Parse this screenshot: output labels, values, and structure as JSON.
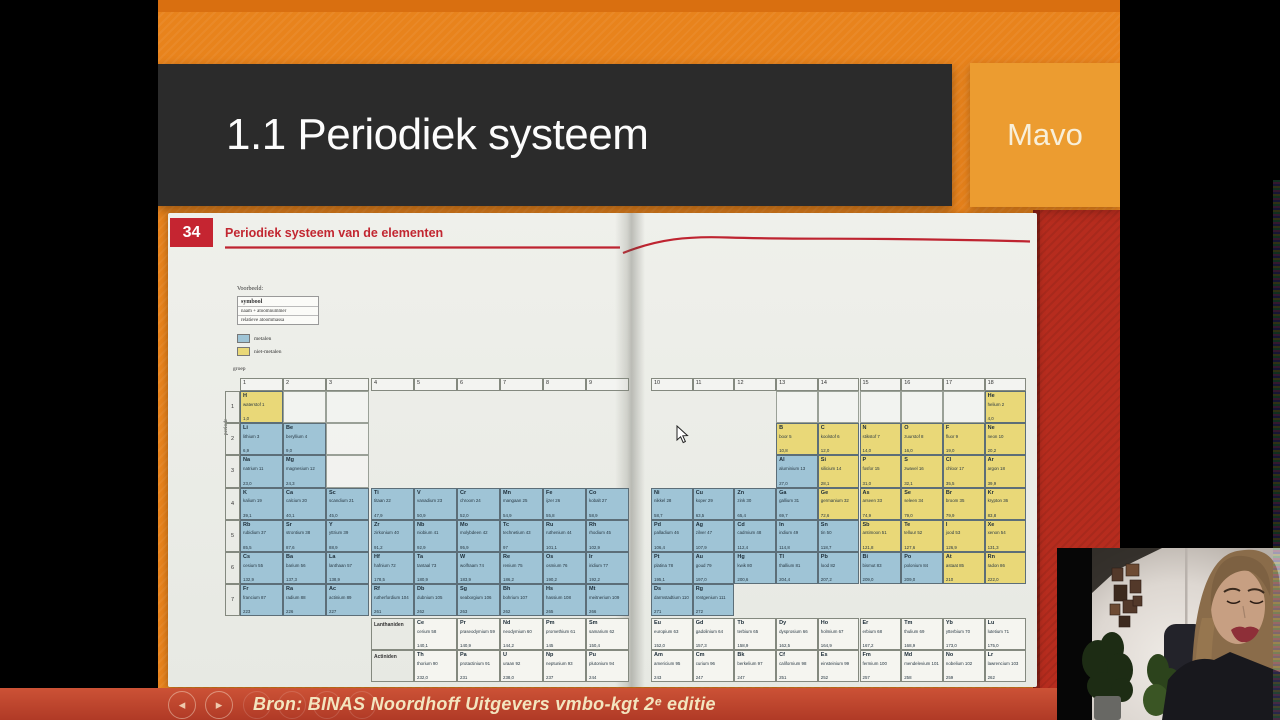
{
  "slide": {
    "title": "1.1 Periodiek systeem",
    "level": "Mavo"
  },
  "presenter": {
    "prev_icon": "◂",
    "next_icon": "▸",
    "source": "Bron: BINAS Noordhoff Uitgevers vmbo-kgt 2ᵉ editie"
  },
  "book": {
    "page_number": "34",
    "title": "Periodiek systeem van de elementen",
    "example_label": "Voorbeeld:",
    "example_rows": [
      "symbool",
      "naam + atoomnummer",
      "relatieve atoommassa"
    ],
    "legend": [
      {
        "label": "metalen",
        "color": "#9FC4D6"
      },
      {
        "label": "niet-metalen",
        "color": "#E9D878"
      }
    ],
    "group_axis_label": "groep",
    "period_axis_label": "periode"
  },
  "table": {
    "group_numbers": [
      "1",
      "2",
      "3",
      "4",
      "5",
      "6",
      "7",
      "8",
      "9",
      "10",
      "11",
      "12",
      "13",
      "14",
      "15",
      "16",
      "17",
      "18"
    ],
    "period_numbers": [
      "1",
      "2",
      "3",
      "4",
      "5",
      "6",
      "7"
    ],
    "series_labels": [
      {
        "label": "Lanthaniden",
        "row": 8
      },
      {
        "label": "Actiniden",
        "row": 9
      }
    ],
    "empty_cells": [
      {
        "p": 1,
        "g": 2
      },
      {
        "p": 1,
        "g": 3
      },
      {
        "p": 2,
        "g": 3
      },
      {
        "p": 3,
        "g": 3
      },
      {
        "p": 1,
        "g": 13
      },
      {
        "p": 1,
        "g": 14
      },
      {
        "p": 1,
        "g": 15
      },
      {
        "p": 1,
        "g": 16
      },
      {
        "p": 1,
        "g": 17
      }
    ],
    "elements": [
      {
        "p": 1,
        "g": 1,
        "s": "H",
        "n": "waterstof",
        "a": 1,
        "m": "1,0",
        "t": "n"
      },
      {
        "p": 1,
        "g": 18,
        "s": "He",
        "n": "helium",
        "a": 2,
        "m": "4,0",
        "t": "n"
      },
      {
        "p": 2,
        "g": 1,
        "s": "Li",
        "n": "lithium",
        "a": 3,
        "m": "6,9",
        "t": "m"
      },
      {
        "p": 2,
        "g": 2,
        "s": "Be",
        "n": "beryllium",
        "a": 4,
        "m": "9,0",
        "t": "m"
      },
      {
        "p": 2,
        "g": 13,
        "s": "B",
        "n": "boor",
        "a": 5,
        "m": "10,8",
        "t": "n"
      },
      {
        "p": 2,
        "g": 14,
        "s": "C",
        "n": "koolstof",
        "a": 6,
        "m": "12,0",
        "t": "n"
      },
      {
        "p": 2,
        "g": 15,
        "s": "N",
        "n": "stikstof",
        "a": 7,
        "m": "14,0",
        "t": "n"
      },
      {
        "p": 2,
        "g": 16,
        "s": "O",
        "n": "zuurstof",
        "a": 8,
        "m": "16,0",
        "t": "n"
      },
      {
        "p": 2,
        "g": 17,
        "s": "F",
        "n": "fluor",
        "a": 9,
        "m": "19,0",
        "t": "n"
      },
      {
        "p": 2,
        "g": 18,
        "s": "Ne",
        "n": "neon",
        "a": 10,
        "m": "20,2",
        "t": "n"
      },
      {
        "p": 3,
        "g": 1,
        "s": "Na",
        "n": "natrium",
        "a": 11,
        "m": "23,0",
        "t": "m"
      },
      {
        "p": 3,
        "g": 2,
        "s": "Mg",
        "n": "magnesium",
        "a": 12,
        "m": "24,3",
        "t": "m"
      },
      {
        "p": 3,
        "g": 13,
        "s": "Al",
        "n": "aluminium",
        "a": 13,
        "m": "27,0",
        "t": "m"
      },
      {
        "p": 3,
        "g": 14,
        "s": "Si",
        "n": "silicium",
        "a": 14,
        "m": "28,1",
        "t": "n"
      },
      {
        "p": 3,
        "g": 15,
        "s": "P",
        "n": "fosfor",
        "a": 15,
        "m": "31,0",
        "t": "n"
      },
      {
        "p": 3,
        "g": 16,
        "s": "S",
        "n": "zwavel",
        "a": 16,
        "m": "32,1",
        "t": "n"
      },
      {
        "p": 3,
        "g": 17,
        "s": "Cl",
        "n": "chloor",
        "a": 17,
        "m": "35,5",
        "t": "n"
      },
      {
        "p": 3,
        "g": 18,
        "s": "Ar",
        "n": "argon",
        "a": 18,
        "m": "39,9",
        "t": "n"
      },
      {
        "p": 4,
        "g": 1,
        "s": "K",
        "n": "kalium",
        "a": 19,
        "m": "39,1",
        "t": "m"
      },
      {
        "p": 4,
        "g": 2,
        "s": "Ca",
        "n": "calcium",
        "a": 20,
        "m": "40,1",
        "t": "m"
      },
      {
        "p": 4,
        "g": 3,
        "s": "Sc",
        "n": "scandium",
        "a": 21,
        "m": "45,0",
        "t": "m"
      },
      {
        "p": 4,
        "g": 4,
        "s": "Ti",
        "n": "titaan",
        "a": 22,
        "m": "47,9",
        "t": "m"
      },
      {
        "p": 4,
        "g": 5,
        "s": "V",
        "n": "vanadium",
        "a": 23,
        "m": "50,9",
        "t": "m"
      },
      {
        "p": 4,
        "g": 6,
        "s": "Cr",
        "n": "chroom",
        "a": 24,
        "m": "52,0",
        "t": "m"
      },
      {
        "p": 4,
        "g": 7,
        "s": "Mn",
        "n": "mangaan",
        "a": 25,
        "m": "54,9",
        "t": "m"
      },
      {
        "p": 4,
        "g": 8,
        "s": "Fe",
        "n": "ijzer",
        "a": 26,
        "m": "55,8",
        "t": "m"
      },
      {
        "p": 4,
        "g": 9,
        "s": "Co",
        "n": "kobalt",
        "a": 27,
        "m": "58,9",
        "t": "m"
      },
      {
        "p": 4,
        "g": 10,
        "s": "Ni",
        "n": "nikkel",
        "a": 28,
        "m": "58,7",
        "t": "m"
      },
      {
        "p": 4,
        "g": 11,
        "s": "Cu",
        "n": "koper",
        "a": 29,
        "m": "63,5",
        "t": "m"
      },
      {
        "p": 4,
        "g": 12,
        "s": "Zn",
        "n": "zink",
        "a": 30,
        "m": "65,4",
        "t": "m"
      },
      {
        "p": 4,
        "g": 13,
        "s": "Ga",
        "n": "gallium",
        "a": 31,
        "m": "69,7",
        "t": "m"
      },
      {
        "p": 4,
        "g": 14,
        "s": "Ge",
        "n": "germanium",
        "a": 32,
        "m": "72,6",
        "t": "n"
      },
      {
        "p": 4,
        "g": 15,
        "s": "As",
        "n": "arseen",
        "a": 33,
        "m": "74,9",
        "t": "n"
      },
      {
        "p": 4,
        "g": 16,
        "s": "Se",
        "n": "seleen",
        "a": 34,
        "m": "79,0",
        "t": "n"
      },
      {
        "p": 4,
        "g": 17,
        "s": "Br",
        "n": "broom",
        "a": 35,
        "m": "79,9",
        "t": "n"
      },
      {
        "p": 4,
        "g": 18,
        "s": "Kr",
        "n": "krypton",
        "a": 36,
        "m": "83,8",
        "t": "n"
      },
      {
        "p": 5,
        "g": 1,
        "s": "Rb",
        "n": "rubidium",
        "a": 37,
        "m": "85,5",
        "t": "m"
      },
      {
        "p": 5,
        "g": 2,
        "s": "Sr",
        "n": "strontium",
        "a": 38,
        "m": "87,6",
        "t": "m"
      },
      {
        "p": 5,
        "g": 3,
        "s": "Y",
        "n": "yttrium",
        "a": 39,
        "m": "88,9",
        "t": "m"
      },
      {
        "p": 5,
        "g": 4,
        "s": "Zr",
        "n": "zirkonium",
        "a": 40,
        "m": "91,2",
        "t": "m"
      },
      {
        "p": 5,
        "g": 5,
        "s": "Nb",
        "n": "niobium",
        "a": 41,
        "m": "92,9",
        "t": "m"
      },
      {
        "p": 5,
        "g": 6,
        "s": "Mo",
        "n": "molybdeen",
        "a": 42,
        "m": "95,9",
        "t": "m"
      },
      {
        "p": 5,
        "g": 7,
        "s": "Tc",
        "n": "technetium",
        "a": 43,
        "m": "97",
        "t": "m"
      },
      {
        "p": 5,
        "g": 8,
        "s": "Ru",
        "n": "ruthenium",
        "a": 44,
        "m": "101,1",
        "t": "m"
      },
      {
        "p": 5,
        "g": 9,
        "s": "Rh",
        "n": "rhodium",
        "a": 45,
        "m": "102,9",
        "t": "m"
      },
      {
        "p": 5,
        "g": 10,
        "s": "Pd",
        "n": "palladium",
        "a": 46,
        "m": "106,4",
        "t": "m"
      },
      {
        "p": 5,
        "g": 11,
        "s": "Ag",
        "n": "zilver",
        "a": 47,
        "m": "107,9",
        "t": "m"
      },
      {
        "p": 5,
        "g": 12,
        "s": "Cd",
        "n": "cadmium",
        "a": 48,
        "m": "112,4",
        "t": "m"
      },
      {
        "p": 5,
        "g": 13,
        "s": "In",
        "n": "indium",
        "a": 49,
        "m": "114,8",
        "t": "m"
      },
      {
        "p": 5,
        "g": 14,
        "s": "Sn",
        "n": "tin",
        "a": 50,
        "m": "118,7",
        "t": "m"
      },
      {
        "p": 5,
        "g": 15,
        "s": "Sb",
        "n": "antimoon",
        "a": 51,
        "m": "121,8",
        "t": "n"
      },
      {
        "p": 5,
        "g": 16,
        "s": "Te",
        "n": "telluur",
        "a": 52,
        "m": "127,6",
        "t": "n"
      },
      {
        "p": 5,
        "g": 17,
        "s": "I",
        "n": "jood",
        "a": 53,
        "m": "126,9",
        "t": "n"
      },
      {
        "p": 5,
        "g": 18,
        "s": "Xe",
        "n": "xenon",
        "a": 54,
        "m": "131,3",
        "t": "n"
      },
      {
        "p": 6,
        "g": 1,
        "s": "Cs",
        "n": "cesium",
        "a": 55,
        "m": "132,9",
        "t": "m"
      },
      {
        "p": 6,
        "g": 2,
        "s": "Ba",
        "n": "barium",
        "a": 56,
        "m": "137,3",
        "t": "m"
      },
      {
        "p": 6,
        "g": 3,
        "s": "La",
        "n": "lanthaan",
        "a": 57,
        "m": "138,9",
        "t": "m"
      },
      {
        "p": 6,
        "g": 4,
        "s": "Hf",
        "n": "hafnium",
        "a": 72,
        "m": "178,5",
        "t": "m"
      },
      {
        "p": 6,
        "g": 5,
        "s": "Ta",
        "n": "tantaal",
        "a": 73,
        "m": "180,9",
        "t": "m"
      },
      {
        "p": 6,
        "g": 6,
        "s": "W",
        "n": "wolfraam",
        "a": 74,
        "m": "183,9",
        "t": "m"
      },
      {
        "p": 6,
        "g": 7,
        "s": "Re",
        "n": "renium",
        "a": 75,
        "m": "186,2",
        "t": "m"
      },
      {
        "p": 6,
        "g": 8,
        "s": "Os",
        "n": "osmium",
        "a": 76,
        "m": "190,2",
        "t": "m"
      },
      {
        "p": 6,
        "g": 9,
        "s": "Ir",
        "n": "iridium",
        "a": 77,
        "m": "192,2",
        "t": "m"
      },
      {
        "p": 6,
        "g": 10,
        "s": "Pt",
        "n": "platina",
        "a": 78,
        "m": "195,1",
        "t": "m"
      },
      {
        "p": 6,
        "g": 11,
        "s": "Au",
        "n": "goud",
        "a": 79,
        "m": "197,0",
        "t": "m"
      },
      {
        "p": 6,
        "g": 12,
        "s": "Hg",
        "n": "kwik",
        "a": 80,
        "m": "200,6",
        "t": "m"
      },
      {
        "p": 6,
        "g": 13,
        "s": "Tl",
        "n": "thallium",
        "a": 81,
        "m": "204,4",
        "t": "m"
      },
      {
        "p": 6,
        "g": 14,
        "s": "Pb",
        "n": "lood",
        "a": 82,
        "m": "207,2",
        "t": "m"
      },
      {
        "p": 6,
        "g": 15,
        "s": "Bi",
        "n": "bismut",
        "a": 83,
        "m": "209,0",
        "t": "m"
      },
      {
        "p": 6,
        "g": 16,
        "s": "Po",
        "n": "polonium",
        "a": 84,
        "m": "209,0",
        "t": "m"
      },
      {
        "p": 6,
        "g": 17,
        "s": "At",
        "n": "astaat",
        "a": 85,
        "m": "210",
        "t": "n"
      },
      {
        "p": 6,
        "g": 18,
        "s": "Rn",
        "n": "radon",
        "a": 86,
        "m": "222,0",
        "t": "n"
      },
      {
        "p": 7,
        "g": 1,
        "s": "Fr",
        "n": "francium",
        "a": 87,
        "m": "223",
        "t": "m"
      },
      {
        "p": 7,
        "g": 2,
        "s": "Ra",
        "n": "radium",
        "a": 88,
        "m": "226",
        "t": "m"
      },
      {
        "p": 7,
        "g": 3,
        "s": "Ac",
        "n": "actinium",
        "a": 89,
        "m": "227",
        "t": "m"
      },
      {
        "p": 7,
        "g": 4,
        "s": "Rf",
        "n": "rutherfordium",
        "a": 104,
        "m": "261",
        "t": "m"
      },
      {
        "p": 7,
        "g": 5,
        "s": "Db",
        "n": "dubnium",
        "a": 105,
        "m": "262",
        "t": "m"
      },
      {
        "p": 7,
        "g": 6,
        "s": "Sg",
        "n": "seaborgium",
        "a": 106,
        "m": "263",
        "t": "m"
      },
      {
        "p": 7,
        "g": 7,
        "s": "Bh",
        "n": "bohrium",
        "a": 107,
        "m": "262",
        "t": "m"
      },
      {
        "p": 7,
        "g": 8,
        "s": "Hs",
        "n": "hassium",
        "a": 108,
        "m": "265",
        "t": "m"
      },
      {
        "p": 7,
        "g": 9,
        "s": "Mt",
        "n": "meitnerium",
        "a": 109,
        "m": "266",
        "t": "m"
      },
      {
        "p": 7,
        "g": 10,
        "s": "Ds",
        "n": "darmstadtium",
        "a": 110,
        "m": "271",
        "t": "m"
      },
      {
        "p": 7,
        "g": 11,
        "s": "Rg",
        "n": "röntgenium",
        "a": 111,
        "m": "272",
        "t": "m"
      },
      {
        "p": 8,
        "g": 5,
        "s": "Ce",
        "n": "cerium",
        "a": 58,
        "m": "140,1",
        "t": "w"
      },
      {
        "p": 8,
        "g": 6,
        "s": "Pr",
        "n": "praseodymium",
        "a": 59,
        "m": "140,9",
        "t": "w"
      },
      {
        "p": 8,
        "g": 7,
        "s": "Nd",
        "n": "neodymium",
        "a": 60,
        "m": "144,2",
        "t": "w"
      },
      {
        "p": 8,
        "g": 8,
        "s": "Pm",
        "n": "promethium",
        "a": 61,
        "m": "145",
        "t": "w"
      },
      {
        "p": 8,
        "g": 9,
        "s": "Sm",
        "n": "samarium",
        "a": 62,
        "m": "150,4",
        "t": "w"
      },
      {
        "p": 8,
        "g": 10,
        "s": "Eu",
        "n": "europium",
        "a": 63,
        "m": "152,0",
        "t": "w"
      },
      {
        "p": 8,
        "g": 11,
        "s": "Gd",
        "n": "gadolinium",
        "a": 64,
        "m": "157,3",
        "t": "w"
      },
      {
        "p": 8,
        "g": 12,
        "s": "Tb",
        "n": "terbium",
        "a": 65,
        "m": "158,9",
        "t": "w"
      },
      {
        "p": 8,
        "g": 13,
        "s": "Dy",
        "n": "dysprosium",
        "a": 66,
        "m": "162,5",
        "t": "w"
      },
      {
        "p": 8,
        "g": 14,
        "s": "Ho",
        "n": "holmium",
        "a": 67,
        "m": "164,9",
        "t": "w"
      },
      {
        "p": 8,
        "g": 15,
        "s": "Er",
        "n": "erbium",
        "a": 68,
        "m": "167,2",
        "t": "w"
      },
      {
        "p": 8,
        "g": 16,
        "s": "Tm",
        "n": "thulium",
        "a": 69,
        "m": "168,9",
        "t": "w"
      },
      {
        "p": 8,
        "g": 17,
        "s": "Yb",
        "n": "ytterbium",
        "a": 70,
        "m": "173,0",
        "t": "w"
      },
      {
        "p": 8,
        "g": 18,
        "s": "Lu",
        "n": "lutetium",
        "a": 71,
        "m": "175,0",
        "t": "w"
      },
      {
        "p": 9,
        "g": 5,
        "s": "Th",
        "n": "thorium",
        "a": 90,
        "m": "232,0",
        "t": "w"
      },
      {
        "p": 9,
        "g": 6,
        "s": "Pa",
        "n": "protactinium",
        "a": 91,
        "m": "231",
        "t": "w"
      },
      {
        "p": 9,
        "g": 7,
        "s": "U",
        "n": "uraan",
        "a": 92,
        "m": "238,0",
        "t": "w"
      },
      {
        "p": 9,
        "g": 8,
        "s": "Np",
        "n": "neptunium",
        "a": 93,
        "m": "237",
        "t": "w"
      },
      {
        "p": 9,
        "g": 9,
        "s": "Pu",
        "n": "plutonium",
        "a": 94,
        "m": "244",
        "t": "w"
      },
      {
        "p": 9,
        "g": 10,
        "s": "Am",
        "n": "americium",
        "a": 95,
        "m": "243",
        "t": "w"
      },
      {
        "p": 9,
        "g": 11,
        "s": "Cm",
        "n": "curium",
        "a": 96,
        "m": "247",
        "t": "w"
      },
      {
        "p": 9,
        "g": 12,
        "s": "Bk",
        "n": "berkelium",
        "a": 97,
        "m": "247",
        "t": "w"
      },
      {
        "p": 9,
        "g": 13,
        "s": "Cf",
        "n": "californium",
        "a": 98,
        "m": "251",
        "t": "w"
      },
      {
        "p": 9,
        "g": 14,
        "s": "Es",
        "n": "einsteinium",
        "a": 99,
        "m": "252",
        "t": "w"
      },
      {
        "p": 9,
        "g": 15,
        "s": "Fm",
        "n": "fermium",
        "a": 100,
        "m": "257",
        "t": "w"
      },
      {
        "p": 9,
        "g": 16,
        "s": "Md",
        "n": "mendelevium",
        "a": 101,
        "m": "258",
        "t": "w"
      },
      {
        "p": 9,
        "g": 17,
        "s": "No",
        "n": "nobelium",
        "a": 102,
        "m": "259",
        "t": "w"
      },
      {
        "p": 9,
        "g": 18,
        "s": "Lr",
        "n": "lawrencium",
        "a": 103,
        "m": "262",
        "t": "w"
      }
    ]
  },
  "colors": {
    "slide_orange": "#E8831C",
    "badge_orange": "#EC9C30",
    "banner_dark": "#2B2B2B",
    "right_panel_red": "#B62C1E",
    "presenter_bar_red": "#C04530",
    "accent_red": "#C22731",
    "metal_blue": "#9FC4D6",
    "nonmetal_yellow": "#E9D878"
  }
}
